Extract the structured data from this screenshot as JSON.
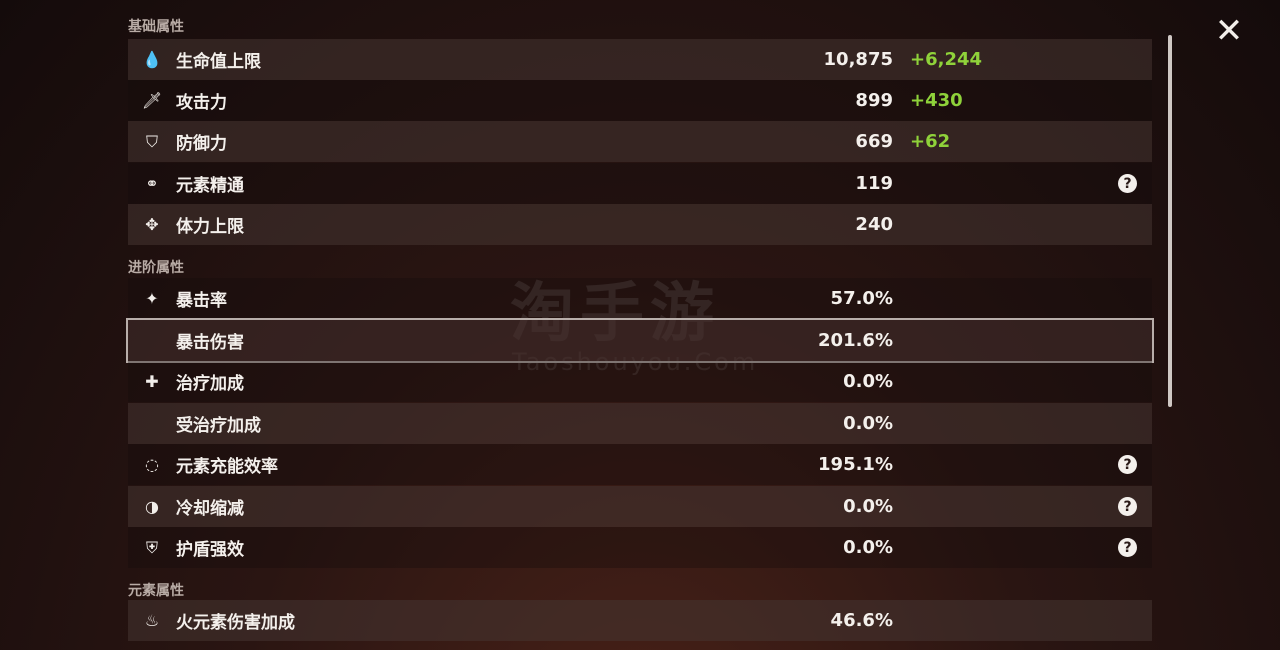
{
  "sections": {
    "basic": "基础属性",
    "advanced": "进阶属性",
    "elemental": "元素属性"
  },
  "basic": [
    {
      "icon": "hp-drop-icon",
      "label": "生命值上限",
      "value": "10,875",
      "bonus": "+6,244"
    },
    {
      "icon": "sword-icon",
      "label": "攻击力",
      "value": "899",
      "bonus": "+430"
    },
    {
      "icon": "shield-icon",
      "label": "防御力",
      "value": "669",
      "bonus": "+62"
    },
    {
      "icon": "elemental-mastery-icon",
      "label": "元素精通",
      "value": "119",
      "help": true
    },
    {
      "icon": "stamina-icon",
      "label": "体力上限",
      "value": "240"
    }
  ],
  "advanced": [
    {
      "icon": "crit-star-icon",
      "label": "暴击率",
      "value": "57.0%"
    },
    {
      "icon": "",
      "label": "暴击伤害",
      "value": "201.6%",
      "selected": true
    },
    {
      "icon": "plus-cross-icon",
      "label": "治疗加成",
      "value": "0.0%"
    },
    {
      "icon": "",
      "label": "受治疗加成",
      "value": "0.0%"
    },
    {
      "icon": "energy-recharge-icon",
      "label": "元素充能效率",
      "value": "195.1%",
      "help": true
    },
    {
      "icon": "cooldown-icon",
      "label": "冷却缩减",
      "value": "0.0%",
      "help": true
    },
    {
      "icon": "shield-strength-icon",
      "label": "护盾强效",
      "value": "0.0%",
      "help": true
    }
  ],
  "elemental": [
    {
      "icon": "pyro-icon",
      "label": "火元素伤害加成",
      "value": "46.6%"
    }
  ],
  "watermark": {
    "cn": "淘手游",
    "en": "Taoshouyou.Com"
  },
  "colors": {
    "bonus": "#8fd23a",
    "selected_border": "#b8aeaa"
  }
}
